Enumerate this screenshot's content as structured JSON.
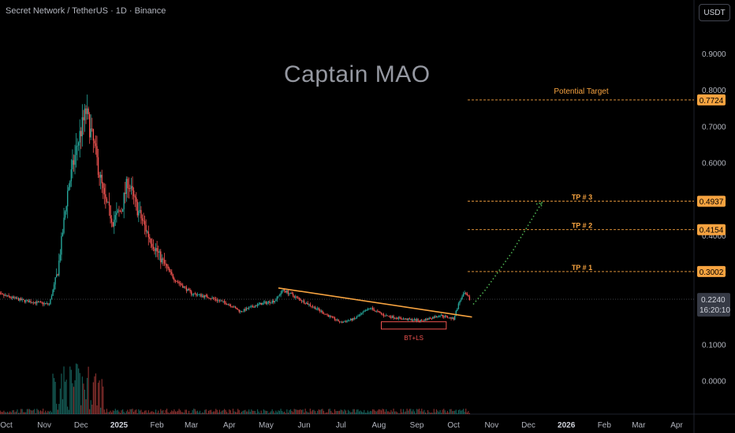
{
  "header": {
    "symbol_line": "Secret Network / TetherUS · 1D · Binance",
    "currency_button": "USDT"
  },
  "watermark": "Captain MAO",
  "colors": {
    "background": "#000000",
    "bull": "#26a69a",
    "bear": "#ef5350",
    "trendline": "#f7a340",
    "target_line": "#f7a340",
    "projection": "#4caf50",
    "tag_bg": "#f7a340",
    "grid": "#131722"
  },
  "chart_data": {
    "type": "candlestick",
    "title": "Secret Network / TetherUS · 1D · Binance",
    "x_ticks": [
      "Oct",
      "Nov",
      "Dec",
      "2025",
      "Feb",
      "Mar",
      "Apr",
      "May",
      "Jun",
      "Jul",
      "Aug",
      "Sep",
      "Oct",
      "Nov",
      "Dec",
      "2026",
      "Feb",
      "Mar",
      "Apr"
    ],
    "y_ticks": [
      "0.9000",
      "0.8000",
      "0.7000",
      "0.6000",
      "0.5000",
      "0.4000",
      "0.3000",
      "0.2000",
      "0.1000",
      "0.0000"
    ],
    "ylim": [
      -0.085,
      1.005
    ],
    "price_path": [
      {
        "date": "2024-09-22",
        "p": 0.24
      },
      {
        "date": "2024-10-15",
        "p": 0.22
      },
      {
        "date": "2024-11-05",
        "p": 0.21
      },
      {
        "date": "2024-11-12",
        "p": 0.3
      },
      {
        "date": "2024-11-20",
        "p": 0.52
      },
      {
        "date": "2024-11-28",
        "p": 0.65
      },
      {
        "date": "2024-12-05",
        "p": 0.74
      },
      {
        "date": "2024-12-12",
        "p": 0.64
      },
      {
        "date": "2024-12-20",
        "p": 0.5
      },
      {
        "date": "2024-12-27",
        "p": 0.44
      },
      {
        "date": "2025-01-03",
        "p": 0.47
      },
      {
        "date": "2025-01-08",
        "p": 0.55
      },
      {
        "date": "2025-01-15",
        "p": 0.48
      },
      {
        "date": "2025-01-25",
        "p": 0.4
      },
      {
        "date": "2025-02-05",
        "p": 0.33
      },
      {
        "date": "2025-02-15",
        "p": 0.28
      },
      {
        "date": "2025-03-01",
        "p": 0.24
      },
      {
        "date": "2025-03-15",
        "p": 0.23
      },
      {
        "date": "2025-04-01",
        "p": 0.21
      },
      {
        "date": "2025-04-10",
        "p": 0.19
      },
      {
        "date": "2025-04-25",
        "p": 0.21
      },
      {
        "date": "2025-05-08",
        "p": 0.22
      },
      {
        "date": "2025-05-15",
        "p": 0.25
      },
      {
        "date": "2025-05-25",
        "p": 0.23
      },
      {
        "date": "2025-06-10",
        "p": 0.2
      },
      {
        "date": "2025-06-20",
        "p": 0.18
      },
      {
        "date": "2025-07-01",
        "p": 0.16
      },
      {
        "date": "2025-07-12",
        "p": 0.17
      },
      {
        "date": "2025-07-25",
        "p": 0.2
      },
      {
        "date": "2025-08-05",
        "p": 0.18
      },
      {
        "date": "2025-08-20",
        "p": 0.17
      },
      {
        "date": "2025-09-05",
        "p": 0.165
      },
      {
        "date": "2025-09-20",
        "p": 0.18
      },
      {
        "date": "2025-10-01",
        "p": 0.17
      },
      {
        "date": "2025-10-06",
        "p": 0.22
      },
      {
        "date": "2025-10-10",
        "p": 0.24
      },
      {
        "date": "2025-10-14",
        "p": 0.224
      }
    ],
    "trendline": {
      "from": {
        "date": "2025-05-11",
        "p": 0.255
      },
      "to": {
        "date": "2025-10-16",
        "p": 0.175
      }
    },
    "range_box": {
      "from_date": "2025-08-03",
      "to_date": "2025-09-25",
      "p_top": 0.162,
      "p_bottom": 0.142,
      "label": "BT+LS"
    },
    "projection": [
      {
        "date": "2025-10-17",
        "p": 0.21
      },
      {
        "date": "2025-10-27",
        "p": 0.25
      },
      {
        "date": "2025-11-17",
        "p": 0.35
      },
      {
        "date": "2025-12-12",
        "p": 0.49
      }
    ],
    "levels": [
      {
        "label": "Potential Target",
        "value": "0.7724",
        "p": 0.7724
      },
      {
        "label": "TP # 3",
        "value": "0.4937",
        "p": 0.4937
      },
      {
        "label": "TP # 2",
        "value": "0.4154",
        "p": 0.4154
      },
      {
        "label": "TP # 1",
        "value": "0.3002",
        "p": 0.3002
      }
    ],
    "current_price": {
      "value": "0.2240",
      "countdown": "16:20:10",
      "p": 0.224
    },
    "grid": false,
    "legend": "none"
  }
}
